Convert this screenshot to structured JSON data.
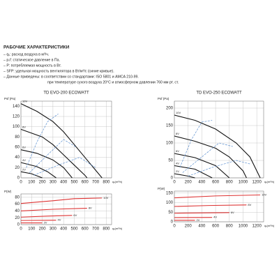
{
  "header": {
    "title": "РАБОЧИЕ ХАРАКТЕРИСТИКИ",
    "lines": [
      "– qᵥ: расход воздуха в м³/ч.",
      "– pₛf: статическое давление в Па.",
      "– P: потребляемая мощность в Вт.",
      "– SFP: удельная мощность вентилятора в Вт/м³/с (синие кривые).",
      "– Данные приведены: в соответствии со стандартами: ISO 5801 и AMCA 210-99.",
      "при температуре сухого воздуха 20°С и атмосферном давлении 760 мм рт. ст."
    ]
  },
  "chart_data": [
    {
      "type": "line",
      "title": "TD EVO-200 ECOWATT",
      "ylabel": "Psf (Pa)",
      "xlabel": "qᵥ(m³/h)",
      "xlim": [
        0,
        850
      ],
      "xticks": [
        0,
        100,
        200,
        300,
        400,
        500,
        600,
        700,
        800
      ],
      "ylim": [
        0,
        150
      ],
      "yticks": [
        0,
        20,
        40,
        60,
        80,
        100,
        120,
        140
      ],
      "grid": true,
      "label_color": "#222",
      "series": [
        {
          "name": "10V",
          "color": "#111",
          "x": [
            0,
            150,
            300,
            400,
            500,
            600,
            700,
            760
          ],
          "values": [
            145,
            130,
            110,
            90,
            65,
            40,
            15,
            0
          ]
        },
        {
          "name": "8V",
          "color": "#111",
          "x": [
            0,
            200,
            300,
            400,
            500,
            600,
            620
          ],
          "values": [
            95,
            80,
            65,
            45,
            25,
            5,
            0
          ]
        },
        {
          "name": "6V",
          "color": "#111",
          "x": [
            0,
            150,
            300,
            400,
            480
          ],
          "values": [
            55,
            48,
            35,
            20,
            0
          ]
        },
        {
          "name": "4V",
          "color": "#111",
          "x": [
            0,
            150,
            250,
            330
          ],
          "values": [
            30,
            22,
            12,
            0
          ]
        },
        {
          "name": "2V",
          "color": "#111",
          "x": [
            0,
            100,
            200
          ],
          "values": [
            12,
            8,
            0
          ]
        },
        {
          "color": "#5b8fd0",
          "dash": true,
          "x": [
            50,
            150,
            250,
            350
          ],
          "values": [
            20,
            70,
            110,
            125
          ]
        },
        {
          "color": "#5b8fd0",
          "dash": true,
          "x": [
            80,
            250,
            400,
            520
          ],
          "values": [
            10,
            45,
            75,
            60
          ]
        },
        {
          "color": "#5b8fd0",
          "dash": true,
          "x": [
            120,
            350,
            550,
            700
          ],
          "values": [
            5,
            25,
            40,
            20
          ]
        }
      ]
    },
    {
      "type": "line",
      "ylabel": "P(W)",
      "xlabel": "qᵥ(m³/h)",
      "xlim": [
        0,
        850
      ],
      "xticks": [
        0,
        100,
        200,
        300,
        400,
        500,
        600,
        700,
        800
      ],
      "ylim": [
        0,
        90
      ],
      "yticks": [
        0,
        20,
        40,
        60,
        80
      ],
      "grid": true,
      "label_color": "#d33",
      "series": [
        {
          "name": "10V",
          "color": "#d33",
          "x": [
            0,
            300,
            500,
            760
          ],
          "values": [
            62,
            70,
            76,
            78
          ]
        },
        {
          "name": "8V",
          "color": "#d33",
          "x": [
            0,
            300,
            620
          ],
          "values": [
            40,
            45,
            48
          ]
        },
        {
          "name": "6V",
          "color": "#d33",
          "x": [
            0,
            250,
            480
          ],
          "values": [
            22,
            25,
            27
          ]
        },
        {
          "name": "4V",
          "color": "#d33",
          "x": [
            0,
            330
          ],
          "values": [
            12,
            13
          ]
        },
        {
          "name": "2V",
          "color": "#d33",
          "x": [
            0,
            200
          ],
          "values": [
            5,
            5
          ]
        }
      ]
    },
    {
      "type": "line",
      "title": "TD EVO-250 ECOWATT",
      "ylabel": "Psf (Pa)",
      "xlabel": "qᵥ(m³/h)",
      "xlim": [
        0,
        1300
      ],
      "xticks": [
        0,
        200,
        400,
        600,
        800,
        1000,
        1200
      ],
      "ylim": [
        0,
        220
      ],
      "yticks": [
        0,
        50,
        100,
        150,
        200
      ],
      "grid": true,
      "label_color": "#222",
      "series": [
        {
          "name": "10V",
          "color": "#111",
          "x": [
            0,
            300,
            600,
            900,
            1100,
            1250
          ],
          "values": [
            180,
            165,
            140,
            100,
            60,
            0
          ]
        },
        {
          "name": "8V",
          "color": "#111",
          "x": [
            0,
            300,
            600,
            800,
            1000,
            1050
          ],
          "values": [
            120,
            105,
            85,
            60,
            20,
            0
          ]
        },
        {
          "name": "6V",
          "color": "#111",
          "x": [
            0,
            300,
            600,
            800
          ],
          "values": [
            70,
            58,
            35,
            0
          ]
        },
        {
          "name": "4V",
          "color": "#111",
          "x": [
            0,
            300,
            550
          ],
          "values": [
            35,
            25,
            0
          ]
        },
        {
          "name": "2V",
          "color": "#111",
          "x": [
            0,
            200,
            300
          ],
          "values": [
            12,
            5,
            0
          ]
        },
        {
          "color": "#5b8fd0",
          "dash": true,
          "x": [
            80,
            250,
            400,
            550
          ],
          "values": [
            30,
            110,
            160,
            165
          ]
        },
        {
          "color": "#5b8fd0",
          "dash": true,
          "x": [
            120,
            400,
            650,
            850
          ],
          "values": [
            15,
            60,
            100,
            90
          ]
        },
        {
          "color": "#5b8fd0",
          "dash": true,
          "x": [
            200,
            550,
            900,
            1100
          ],
          "values": [
            5,
            30,
            50,
            40
          ]
        }
      ]
    },
    {
      "type": "line",
      "ylabel": "P(W)",
      "xlabel": "qᵥ(m³/h)",
      "xlim": [
        0,
        1300
      ],
      "xticks": [
        0,
        200,
        400,
        600,
        800,
        1000,
        1200
      ],
      "ylim": [
        0,
        160
      ],
      "yticks": [
        0,
        50,
        100,
        150
      ],
      "grid": true,
      "label_color": "#d33",
      "series": [
        {
          "name": "10V",
          "color": "#d33",
          "x": [
            0,
            600,
            1250
          ],
          "values": [
            125,
            135,
            140
          ]
        },
        {
          "name": "8V",
          "color": "#d33",
          "x": [
            0,
            500,
            1050
          ],
          "values": [
            80,
            85,
            88
          ]
        },
        {
          "name": "6V",
          "color": "#d33",
          "x": [
            0,
            800
          ],
          "values": [
            45,
            48
          ]
        },
        {
          "name": "4V",
          "color": "#d33",
          "x": [
            0,
            550
          ],
          "values": [
            22,
            23
          ]
        },
        {
          "name": "2V",
          "color": "#d33",
          "x": [
            0,
            300
          ],
          "values": [
            8,
            8
          ]
        }
      ]
    }
  ]
}
